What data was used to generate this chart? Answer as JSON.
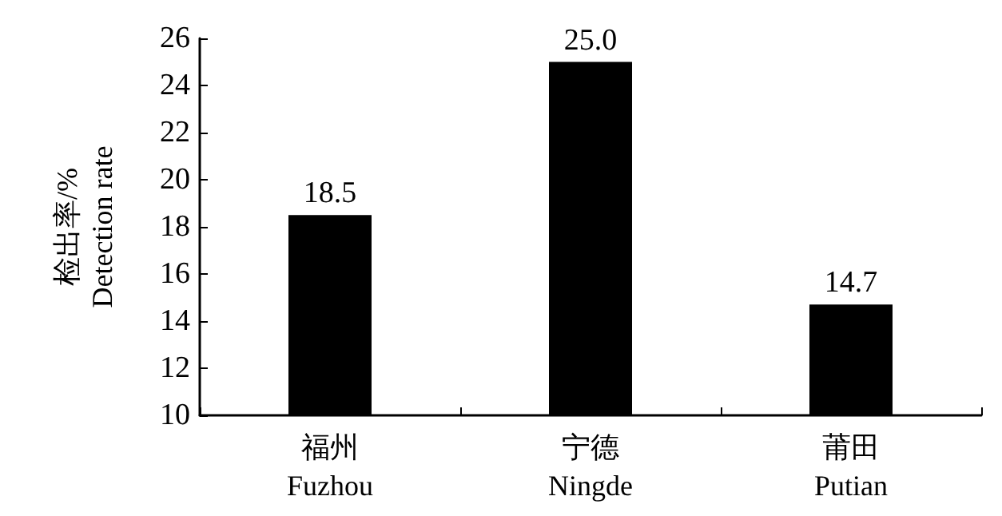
{
  "chart_data": {
    "type": "bar",
    "ylabel": "检出率/%\nDetection rate",
    "categories": [
      "福州\nFuzhou",
      "宁德\nNingde",
      "莆田\nPutian"
    ],
    "values": [
      18.5,
      25.0,
      14.7
    ],
    "value_labels": [
      "18.5",
      "25.0",
      "14.7"
    ],
    "color": "#000000",
    "ylim": [
      10,
      26
    ],
    "yticks": [
      10,
      12,
      14,
      16,
      18,
      20,
      22,
      24,
      26
    ],
    "grid": false
  }
}
